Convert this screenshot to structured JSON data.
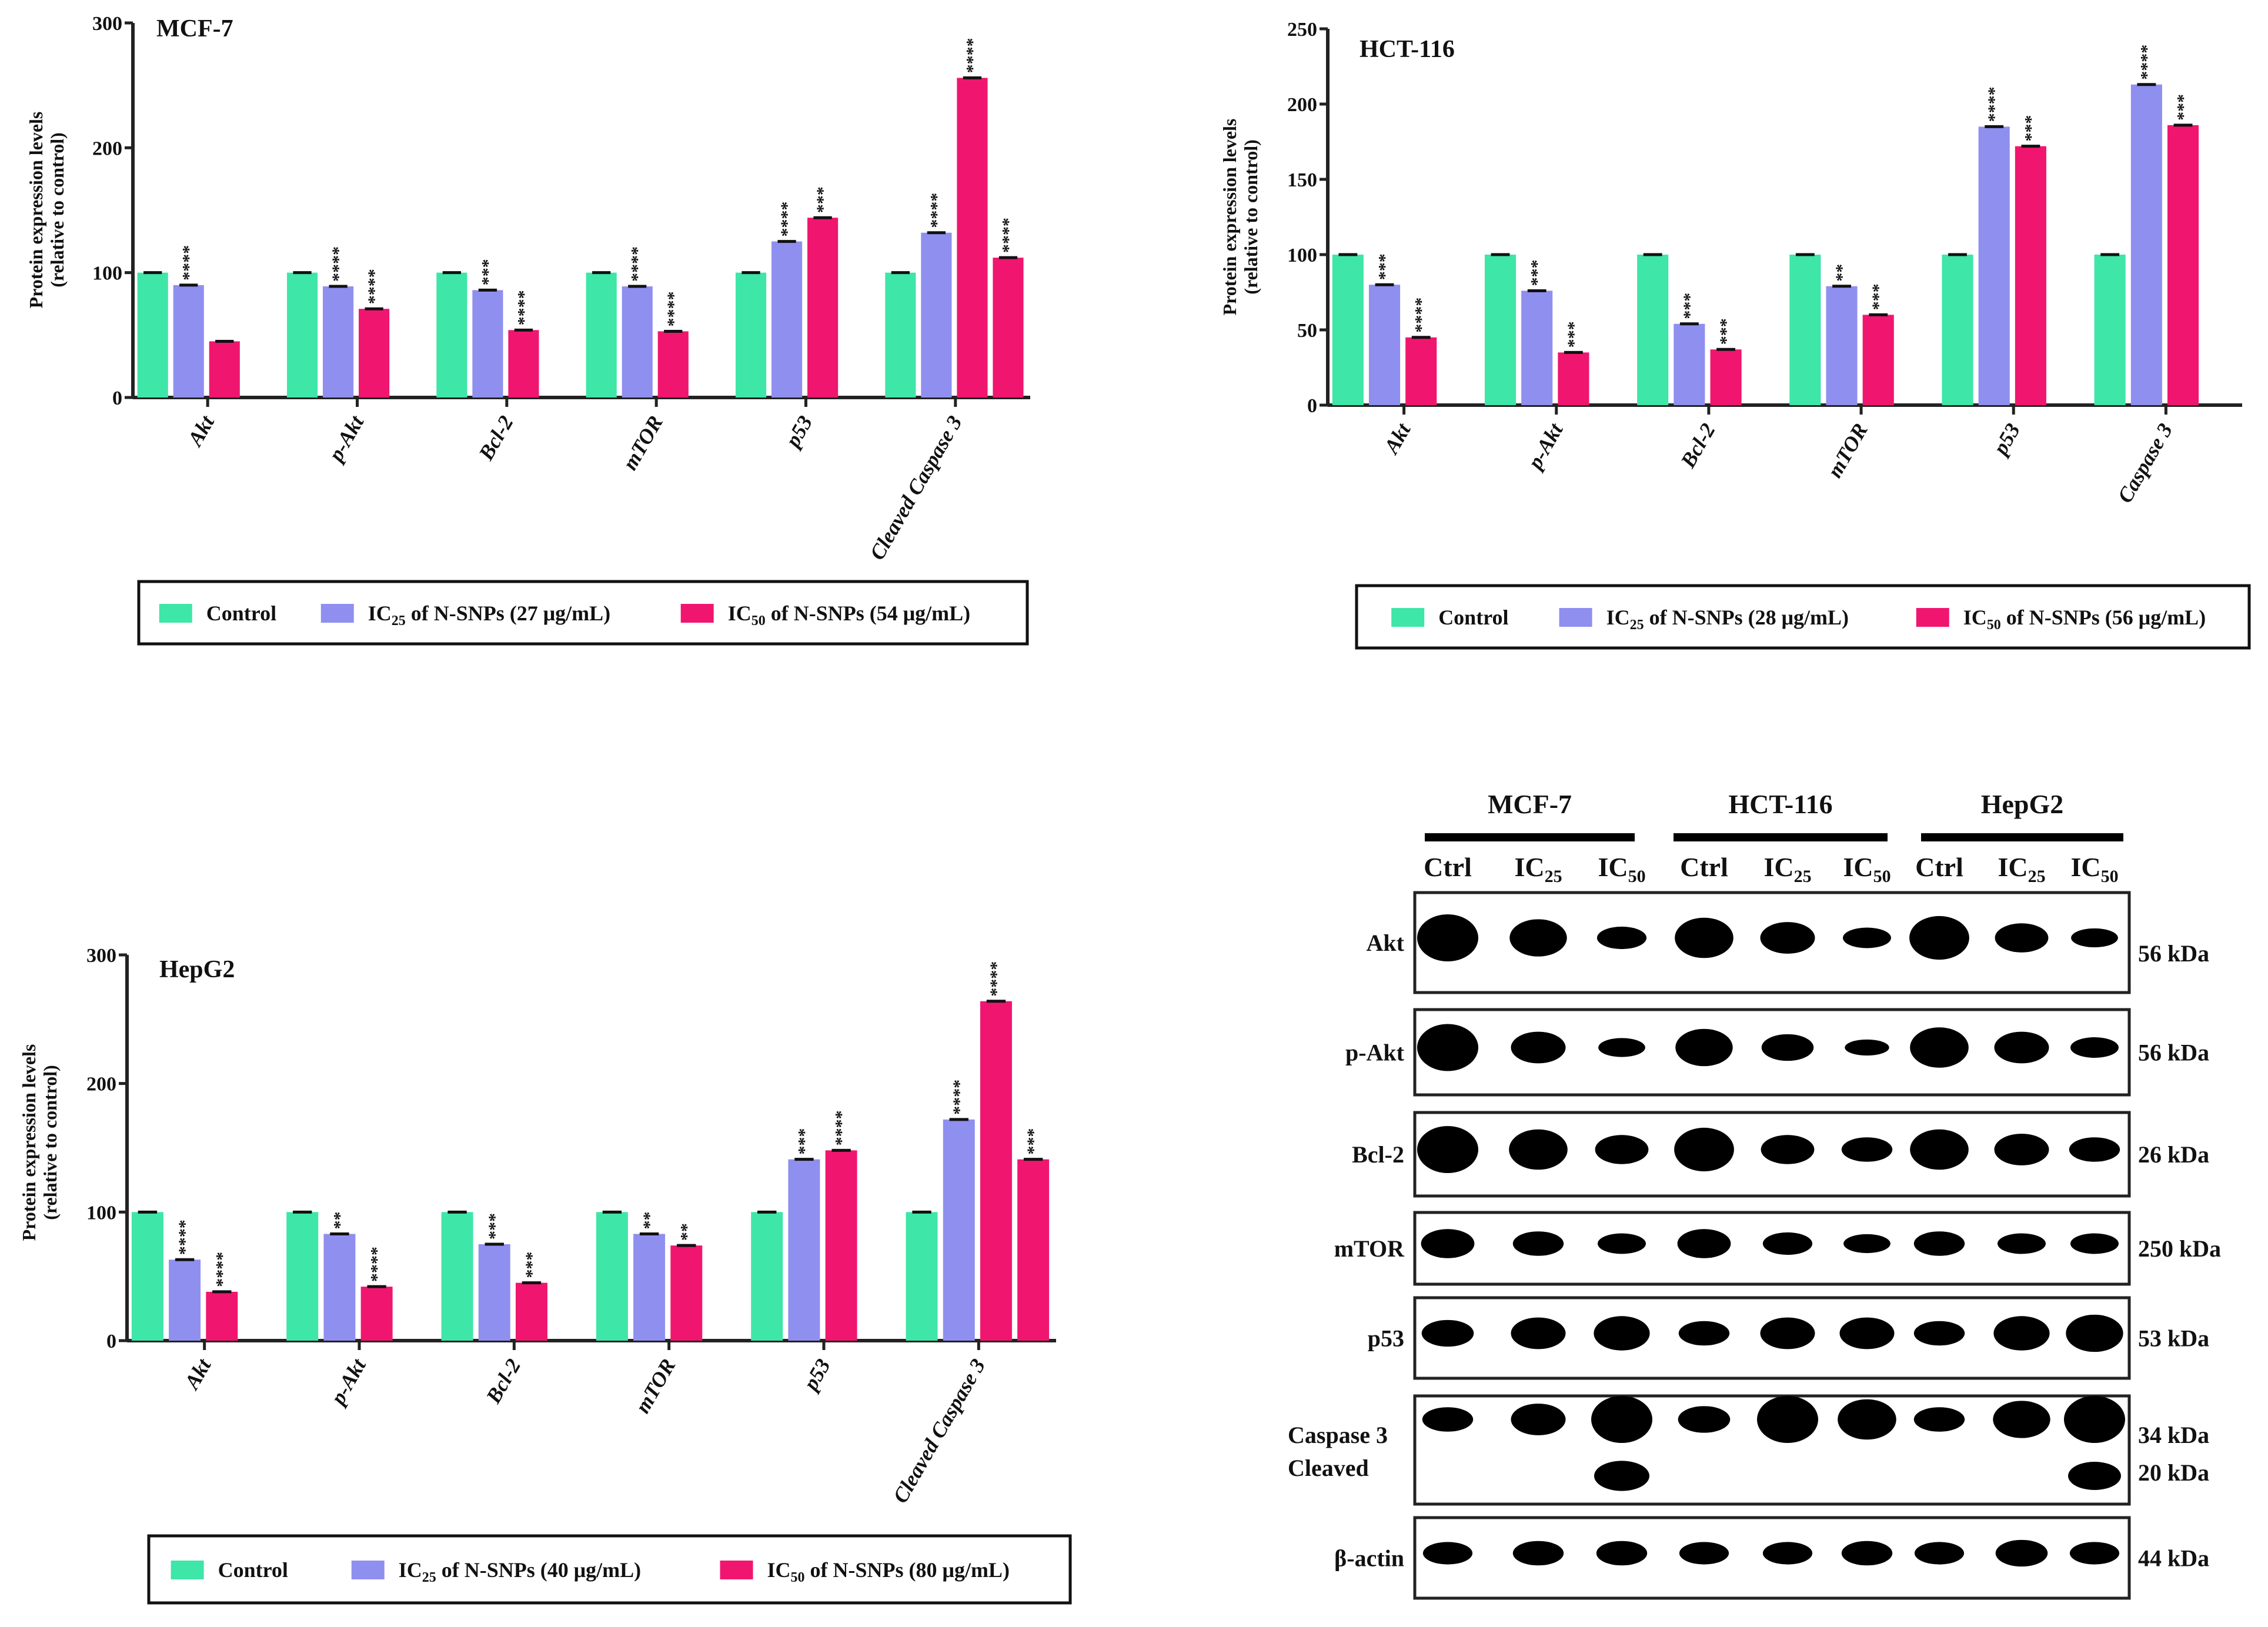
{
  "colors": {
    "control": "#3ee6a8",
    "ic25": "#8f8ff0",
    "ic50": "#f0166f",
    "axis": "#222222"
  },
  "chart_data": [
    {
      "type": "bar",
      "title": "MCF-7",
      "ylabel": [
        "Protein expression levels",
        "(relative to control)"
      ],
      "ylim": [
        0,
        300
      ],
      "yticks": [
        "0",
        "100",
        "200",
        "300"
      ],
      "ytick_values": [
        0,
        100,
        200,
        300
      ],
      "categories": [
        "Akt",
        "p-Akt",
        "Bcl-2",
        "mTOR",
        "p53",
        "Cleaved Caspase 3"
      ],
      "groups": [
        {
          "values": [
            100,
            90,
            45
          ],
          "colors": [
            "control",
            "ic25",
            "ic50"
          ],
          "stars": [
            "",
            "****",
            ""
          ]
        },
        {
          "values": [
            100,
            89,
            71
          ],
          "colors": [
            "control",
            "ic25",
            "ic50"
          ],
          "stars": [
            "",
            "****",
            "****"
          ]
        },
        {
          "values": [
            100,
            86,
            54
          ],
          "colors": [
            "control",
            "ic25",
            "ic50"
          ],
          "stars": [
            "",
            "***",
            "****"
          ]
        },
        {
          "values": [
            100,
            89,
            53
          ],
          "colors": [
            "control",
            "ic25",
            "ic50"
          ],
          "stars": [
            "",
            "****",
            "****"
          ]
        },
        {
          "values": [
            100,
            125,
            144
          ],
          "colors": [
            "control",
            "ic25",
            "ic50"
          ],
          "stars": [
            "",
            "****",
            "***"
          ]
        },
        {
          "values": [
            100,
            132,
            256,
            112
          ],
          "colors": [
            "control",
            "ic25",
            "ic50",
            "ic50"
          ],
          "stars": [
            "",
            "****",
            "****",
            "****"
          ]
        }
      ],
      "legend": [
        {
          "color": "control",
          "prefix": "Control",
          "sub": "",
          "rest": ""
        },
        {
          "color": "ic25",
          "prefix": "IC",
          "sub": "25",
          "rest": " of N-SNPs (27 μg/mL)"
        },
        {
          "color": "ic50",
          "prefix": "IC",
          "sub": "50",
          "rest": " of N-SNPs (54 μg/mL)"
        }
      ],
      "legend_position": "bottom"
    },
    {
      "type": "bar",
      "title": "HCT-116",
      "ylabel": [
        "Protein expression levels",
        "(relative to control)"
      ],
      "ylim": [
        0,
        250
      ],
      "yticks": [
        "0",
        "50",
        "100",
        "150",
        "200",
        "250"
      ],
      "ytick_values": [
        0,
        50,
        100,
        150,
        200,
        250
      ],
      "categories": [
        "Akt",
        "p-Akt",
        "Bcl-2",
        "mTOR",
        "p53",
        "Caspase 3"
      ],
      "groups": [
        {
          "values": [
            100,
            80,
            45
          ],
          "colors": [
            "control",
            "ic25",
            "ic50"
          ],
          "stars": [
            "",
            "***",
            "****"
          ]
        },
        {
          "values": [
            100,
            76,
            35
          ],
          "colors": [
            "control",
            "ic25",
            "ic50"
          ],
          "stars": [
            "",
            "***",
            "***"
          ]
        },
        {
          "values": [
            100,
            54,
            37
          ],
          "colors": [
            "control",
            "ic25",
            "ic50"
          ],
          "stars": [
            "",
            "***",
            "***"
          ]
        },
        {
          "values": [
            100,
            79,
            60
          ],
          "colors": [
            "control",
            "ic25",
            "ic50"
          ],
          "stars": [
            "",
            "**",
            "***"
          ]
        },
        {
          "values": [
            100,
            185,
            172
          ],
          "colors": [
            "control",
            "ic25",
            "ic50"
          ],
          "stars": [
            "",
            "****",
            "***"
          ]
        },
        {
          "values": [
            100,
            213,
            186
          ],
          "colors": [
            "control",
            "ic25",
            "ic50"
          ],
          "stars": [
            "",
            "****",
            "***"
          ]
        }
      ],
      "legend": [
        {
          "color": "control",
          "prefix": "Control",
          "sub": "",
          "rest": ""
        },
        {
          "color": "ic25",
          "prefix": "IC",
          "sub": "25",
          "rest": " of N-SNPs (28 μg/mL)"
        },
        {
          "color": "ic50",
          "prefix": "IC",
          "sub": "50",
          "rest": " of N-SNPs (56 μg/mL)"
        }
      ],
      "legend_position": "bottom"
    },
    {
      "type": "bar",
      "title": "HepG2",
      "ylabel": [
        "Protein expression levels",
        "(relative to control)"
      ],
      "ylim": [
        0,
        300
      ],
      "yticks": [
        "0",
        "100",
        "200",
        "300"
      ],
      "ytick_values": [
        0,
        100,
        200,
        300
      ],
      "categories": [
        "Akt",
        "p-Akt",
        "Bcl-2",
        "mTOR",
        "p53",
        "Cleaved Caspase 3"
      ],
      "groups": [
        {
          "values": [
            100,
            63,
            38
          ],
          "colors": [
            "control",
            "ic25",
            "ic50"
          ],
          "stars": [
            "",
            "****",
            "****"
          ]
        },
        {
          "values": [
            100,
            83,
            42
          ],
          "colors": [
            "control",
            "ic25",
            "ic50"
          ],
          "stars": [
            "",
            "**",
            "****"
          ]
        },
        {
          "values": [
            100,
            75,
            45
          ],
          "colors": [
            "control",
            "ic25",
            "ic50"
          ],
          "stars": [
            "",
            "***",
            "***"
          ]
        },
        {
          "values": [
            100,
            83,
            74
          ],
          "colors": [
            "control",
            "ic25",
            "ic50"
          ],
          "stars": [
            "",
            "**",
            "**"
          ]
        },
        {
          "values": [
            100,
            141,
            148
          ],
          "colors": [
            "control",
            "ic25",
            "ic50"
          ],
          "stars": [
            "",
            "***",
            "****"
          ]
        },
        {
          "values": [
            100,
            172,
            264,
            141
          ],
          "colors": [
            "control",
            "ic25",
            "ic50",
            "ic50"
          ],
          "stars": [
            "",
            "****",
            "****",
            "***"
          ]
        }
      ],
      "legend": [
        {
          "color": "control",
          "prefix": "Control",
          "sub": "",
          "rest": ""
        },
        {
          "color": "ic25",
          "prefix": "IC",
          "sub": "25",
          "rest": " of N-SNPs (40 μg/mL)"
        },
        {
          "color": "ic50",
          "prefix": "IC",
          "sub": "50",
          "rest": " of N-SNPs (80 μg/mL)"
        }
      ],
      "legend_position": "bottom"
    }
  ],
  "blot": {
    "cell_lines": [
      "MCF-7",
      "HCT-116",
      "HepG2"
    ],
    "lanes": [
      {
        "prefix": "Ctrl",
        "sub": ""
      },
      {
        "prefix": "IC",
        "sub": "25"
      },
      {
        "prefix": "IC",
        "sub": "50"
      },
      {
        "prefix": "Ctrl",
        "sub": ""
      },
      {
        "prefix": "IC",
        "sub": "25"
      },
      {
        "prefix": "IC",
        "sub": "50"
      },
      {
        "prefix": "Ctrl",
        "sub": ""
      },
      {
        "prefix": "IC",
        "sub": "25"
      },
      {
        "prefix": "IC",
        "sub": "50"
      }
    ],
    "rows": [
      {
        "label": [
          "Akt"
        ],
        "kda": [
          "56 kDa"
        ],
        "intensity": [
          1.0,
          0.85,
          0.55,
          0.9,
          0.75,
          0.5,
          0.95,
          0.7,
          0.45
        ]
      },
      {
        "label": [
          "p-Akt"
        ],
        "kda": [
          "56 kDa"
        ],
        "intensity": [
          1.0,
          0.75,
          0.45,
          0.85,
          0.65,
          0.35,
          0.9,
          0.75,
          0.5
        ]
      },
      {
        "label": [
          "Bcl-2"
        ],
        "kda": [
          "26 kDa"
        ],
        "intensity": [
          1.0,
          0.9,
          0.7,
          0.95,
          0.7,
          0.6,
          0.9,
          0.75,
          0.6
        ]
      },
      {
        "label": [
          "mTOR"
        ],
        "kda": [
          "250 kDa"
        ],
        "intensity": [
          0.7,
          0.6,
          0.5,
          0.7,
          0.55,
          0.45,
          0.6,
          0.5,
          0.5
        ]
      },
      {
        "label": [
          "p53"
        ],
        "kda": [
          "53 kDa"
        ],
        "intensity": [
          0.65,
          0.75,
          0.8,
          0.6,
          0.75,
          0.75,
          0.6,
          0.8,
          0.85
        ]
      },
      {
        "label": [
          "Caspase 3",
          "Cleaved"
        ],
        "kda": [
          "34 kDa",
          "20 kDa"
        ],
        "intensity": [
          0.6,
          0.75,
          1.0,
          0.65,
          1.0,
          0.9,
          0.6,
          0.85,
          1.0
        ],
        "cleaved_intensity": [
          0,
          0,
          0.85,
          0,
          0,
          0,
          0,
          0,
          0.75
        ]
      },
      {
        "label": [
          "β-actin"
        ],
        "kda": [
          "44 kDa"
        ],
        "intensity": [
          0.55,
          0.6,
          0.6,
          0.55,
          0.55,
          0.6,
          0.55,
          0.65,
          0.55
        ]
      }
    ]
  }
}
